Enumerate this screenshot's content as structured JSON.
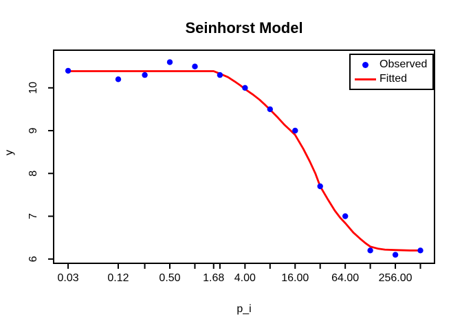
{
  "title": "Seinhorst Model",
  "colors": {
    "observed": "#0000ff",
    "fitted": "#ff0000",
    "axis": "#000000",
    "background": "#ffffff"
  },
  "chart_data": {
    "type": "scatter",
    "title": "Seinhorst Model",
    "xlabel": "p_i",
    "ylabel": "y",
    "x_scale": "log2",
    "xlim": [
      0.0201,
      756
    ],
    "ylim": [
      5.9,
      10.88
    ],
    "grid": false,
    "legend_position": "topright",
    "x_ticks": [
      {
        "value": 0.03,
        "label": "0.03"
      },
      {
        "value": 0.12,
        "label": "0.12"
      },
      {
        "value": 0.25,
        "label": ""
      },
      {
        "value": 0.5,
        "label": "0.50"
      },
      {
        "value": 1,
        "label": ""
      },
      {
        "value": 1.68,
        "label": "1.68"
      },
      {
        "value": 2,
        "label": ""
      },
      {
        "value": 4,
        "label": "4.00"
      },
      {
        "value": 8,
        "label": ""
      },
      {
        "value": 16,
        "label": "16.00"
      },
      {
        "value": 32,
        "label": ""
      },
      {
        "value": 64,
        "label": "64.00"
      },
      {
        "value": 128,
        "label": ""
      },
      {
        "value": 256,
        "label": "256.00"
      },
      {
        "value": 512,
        "label": ""
      }
    ],
    "y_ticks": [
      {
        "value": 6,
        "label": "6"
      },
      {
        "value": 7,
        "label": "7"
      },
      {
        "value": 8,
        "label": "8"
      },
      {
        "value": 9,
        "label": "9"
      },
      {
        "value": 10,
        "label": "10"
      }
    ],
    "series": [
      {
        "name": "Observed",
        "type": "scatter",
        "color": "#0000ff",
        "x": [
          0.03,
          0.12,
          0.25,
          0.5,
          1,
          2,
          4,
          8,
          16,
          32,
          64,
          128,
          256,
          512
        ],
        "y": [
          10.4,
          10.2,
          10.3,
          10.6,
          10.5,
          10.3,
          10.0,
          9.5,
          9.0,
          7.7,
          7.0,
          6.2,
          6.1,
          6.2
        ]
      },
      {
        "name": "Fitted",
        "type": "line",
        "color": "#ff0000",
        "model": {
          "form": "Seinhorst",
          "y_max": 10.39,
          "y_min": 6.2,
          "tolerance_T": 1.68
        },
        "points": [
          [
            0.03,
            10.39
          ],
          [
            1.0,
            10.39
          ],
          [
            1.68,
            10.39
          ],
          [
            2,
            10.33
          ],
          [
            2.5,
            10.25
          ],
          [
            3,
            10.15
          ],
          [
            3.5,
            10.06
          ],
          [
            4,
            9.97
          ],
          [
            5,
            9.84
          ],
          [
            6,
            9.72
          ],
          [
            7,
            9.6
          ],
          [
            8,
            9.49
          ],
          [
            10,
            9.3
          ],
          [
            12,
            9.13
          ],
          [
            14,
            9.01
          ],
          [
            16,
            8.9
          ],
          [
            20,
            8.58
          ],
          [
            24,
            8.28
          ],
          [
            28,
            8.0
          ],
          [
            32,
            7.7
          ],
          [
            40,
            7.38
          ],
          [
            48,
            7.13
          ],
          [
            56,
            6.96
          ],
          [
            64,
            6.84
          ],
          [
            80,
            6.62
          ],
          [
            96,
            6.48
          ],
          [
            112,
            6.37
          ],
          [
            128,
            6.29
          ],
          [
            160,
            6.24
          ],
          [
            192,
            6.22
          ],
          [
            256,
            6.21
          ],
          [
            384,
            6.2
          ],
          [
            512,
            6.2
          ]
        ]
      }
    ]
  }
}
